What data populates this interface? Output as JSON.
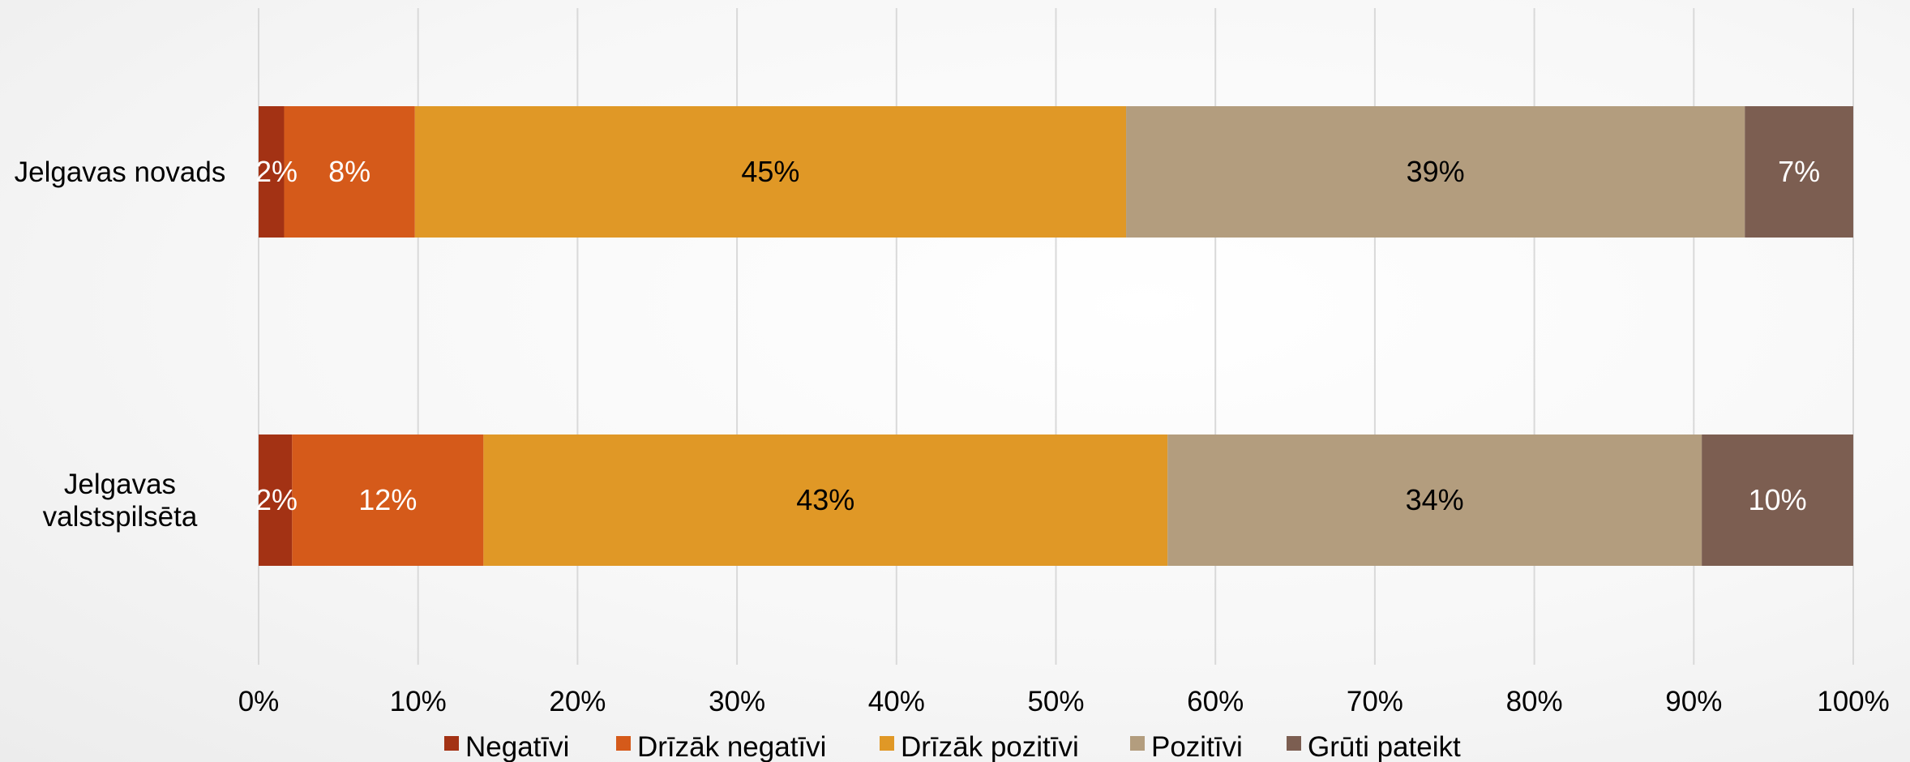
{
  "chart_data": {
    "type": "bar",
    "orientation": "horizontal",
    "stacked": true,
    "categories": [
      [
        "Jelgavas novads"
      ],
      [
        "Jelgavas",
        "valstspilsēta"
      ]
    ],
    "xlim": [
      0,
      100
    ],
    "x_ticks": [
      "0%",
      "10%",
      "20%",
      "30%",
      "40%",
      "50%",
      "60%",
      "70%",
      "80%",
      "90%",
      "100%"
    ],
    "grid": true,
    "legend_position": "bottom",
    "series": [
      {
        "name": "Negatīvi",
        "color": "#a33214",
        "label_color": "#ffffff",
        "values": [
          1.6,
          2.1
        ],
        "labels": [
          "2%",
          "2%"
        ]
      },
      {
        "name": "Drīzāk negatīvi",
        "color": "#d55a1a",
        "label_color": "#ffffff",
        "values": [
          8.2,
          12.0
        ],
        "labels": [
          "8%",
          "12%"
        ]
      },
      {
        "name": "Drīzāk pozitīvi",
        "color": "#e09826",
        "label_color": "#000000",
        "values": [
          44.6,
          42.9
        ],
        "labels": [
          "45%",
          "43%"
        ]
      },
      {
        "name": "Pozitīvi",
        "color": "#b39d7e",
        "label_color": "#000000",
        "values": [
          38.8,
          33.5
        ],
        "labels": [
          "39%",
          "34%"
        ]
      },
      {
        "name": "Grūti pateikt",
        "color": "#7c5e51",
        "label_color": "#ffffff",
        "values": [
          6.8,
          9.5
        ],
        "labels": [
          "7%",
          "10%"
        ]
      }
    ]
  }
}
